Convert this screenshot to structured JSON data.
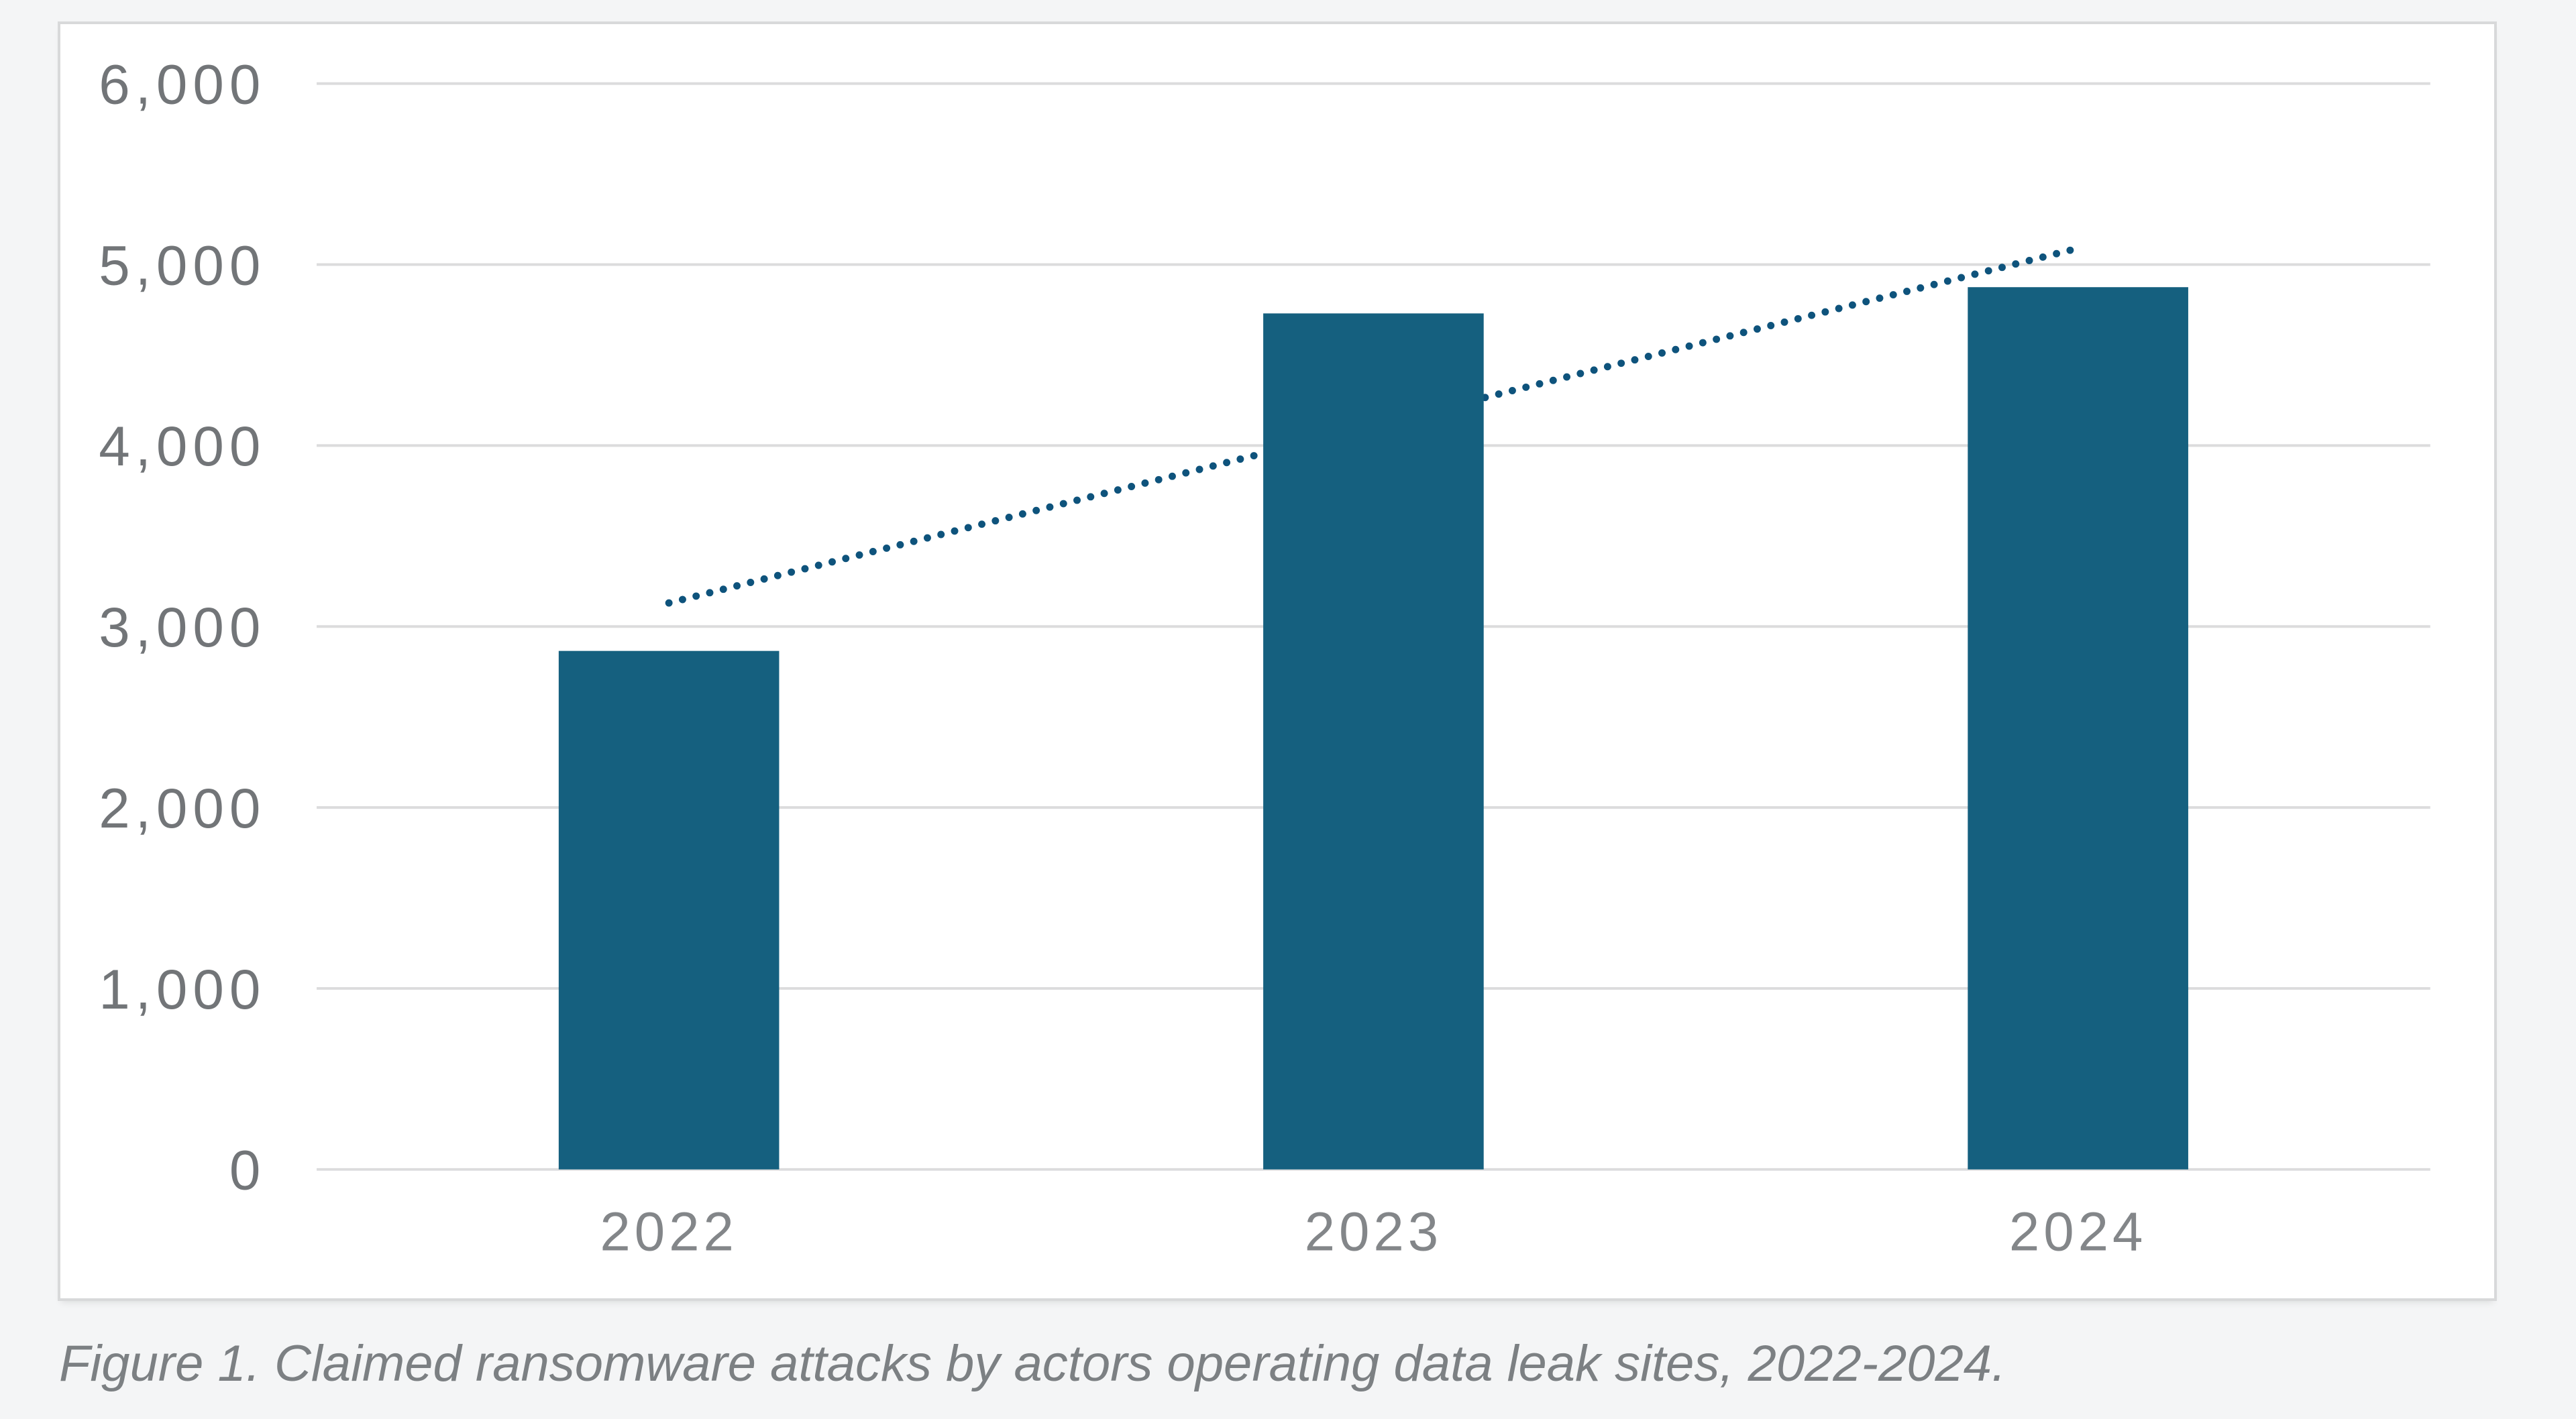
{
  "page": {
    "background_color": "#f4f5f6"
  },
  "figure": {
    "caption": "Figure 1. Claimed ransomware attacks by actors operating data leak sites, 2022-2024."
  },
  "colors": {
    "card_background": "#ffffff",
    "card_border": "#d8d9da",
    "gridline": "#dcdcdd",
    "bar": "#15607f",
    "trendline": "#0e537c",
    "y_tick_text": "#727578",
    "x_tick_text": "#838689",
    "caption_text": "#7c8083"
  },
  "chart_data": {
    "type": "bar",
    "title": "",
    "series_name": "Claimed ransomware attacks",
    "categories": [
      "2022",
      "2023",
      "2024"
    ],
    "values": [
      2865,
      4730,
      4875
    ],
    "xlabel": "",
    "ylabel": "",
    "ylim": [
      0,
      6000
    ],
    "ytick_interval": 1000,
    "ytick_labels": [
      "0",
      "1,000",
      "2,000",
      "3,000",
      "4,000",
      "5,000",
      "6,000"
    ],
    "grid": "horizontal",
    "legend": "none",
    "trendline": {
      "style": "dotted",
      "color": "#0e537c",
      "start_category": "2022",
      "end_category": "2024",
      "start_value": 3130,
      "end_value": 5090
    }
  }
}
